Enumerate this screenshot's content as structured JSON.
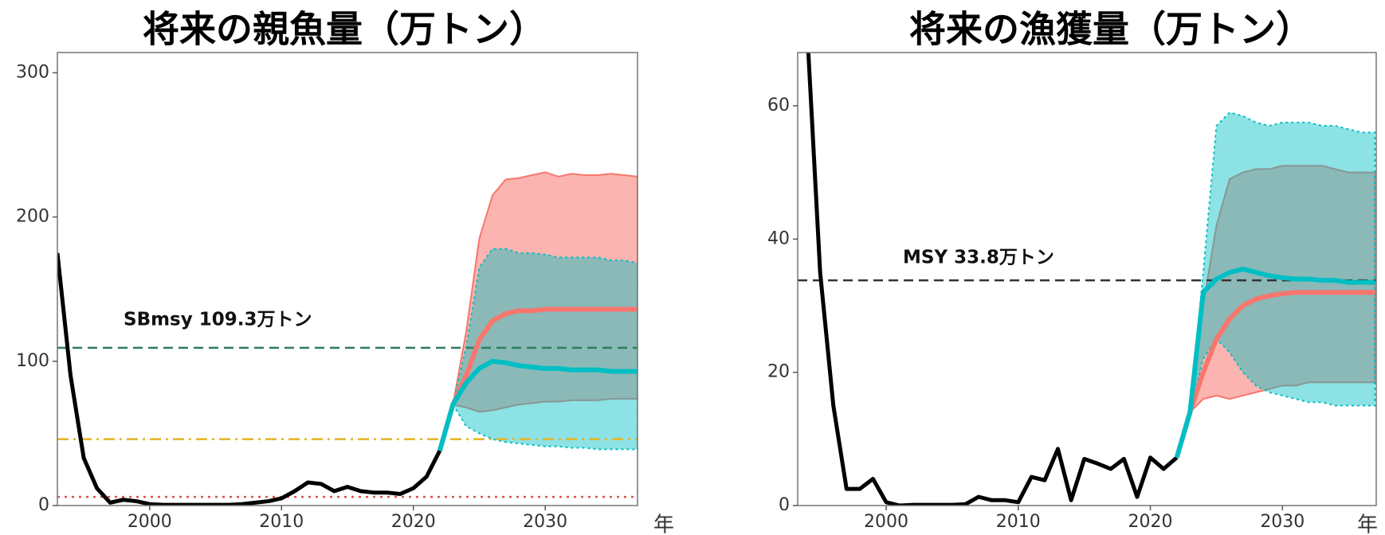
{
  "chart_data": [
    {
      "type": "line",
      "title": "将来の親魚量（万トン）",
      "x_label": "年",
      "x": [
        1993,
        1994,
        1995,
        1996,
        1997,
        1998,
        1999,
        2000,
        2001,
        2002,
        2003,
        2004,
        2005,
        2006,
        2007,
        2008,
        2009,
        2010,
        2011,
        2012,
        2013,
        2014,
        2015,
        2016,
        2017,
        2018,
        2019,
        2020,
        2021,
        2022,
        2023,
        2024,
        2025,
        2026,
        2027,
        2028,
        2029,
        2030,
        2031,
        2032,
        2033,
        2034,
        2035,
        2036,
        2037
      ],
      "xlim": [
        1993,
        2037
      ],
      "xticks": [
        2000,
        2010,
        2020,
        2030
      ],
      "ylim": [
        0,
        314
      ],
      "yticks": [
        0,
        100,
        200,
        300
      ],
      "bands": [
        {
          "color": "#f8766d",
          "lower": [
            null,
            null,
            null,
            null,
            null,
            null,
            null,
            null,
            null,
            null,
            null,
            null,
            null,
            null,
            null,
            null,
            null,
            null,
            null,
            null,
            null,
            null,
            null,
            null,
            null,
            null,
            null,
            null,
            null,
            38,
            70,
            68,
            65,
            66,
            68,
            70,
            71,
            72,
            72,
            73,
            73,
            73,
            74,
            74,
            74
          ],
          "upper": [
            null,
            null,
            null,
            null,
            null,
            null,
            null,
            null,
            null,
            null,
            null,
            null,
            null,
            null,
            null,
            null,
            null,
            null,
            null,
            null,
            null,
            null,
            null,
            null,
            null,
            null,
            null,
            null,
            null,
            38,
            70,
            120,
            185,
            215,
            226,
            227,
            229,
            231,
            228,
            230,
            229,
            229,
            230,
            229,
            228
          ]
        },
        {
          "color": "#00bfc4",
          "lower": [
            null,
            null,
            null,
            null,
            null,
            null,
            null,
            null,
            null,
            null,
            null,
            null,
            null,
            null,
            null,
            null,
            null,
            null,
            null,
            null,
            null,
            null,
            null,
            null,
            null,
            null,
            null,
            null,
            null,
            38,
            70,
            55,
            50,
            46,
            44,
            43,
            42,
            41,
            41,
            40,
            40,
            39,
            39,
            39,
            39
          ],
          "upper": [
            null,
            null,
            null,
            null,
            null,
            null,
            null,
            null,
            null,
            null,
            null,
            null,
            null,
            null,
            null,
            null,
            null,
            null,
            null,
            null,
            null,
            null,
            null,
            null,
            null,
            null,
            null,
            null,
            null,
            38,
            70,
            110,
            165,
            178,
            178,
            175,
            175,
            174,
            172,
            172,
            172,
            172,
            170,
            170,
            168
          ]
        }
      ],
      "series": [
        {
          "color": "#000000",
          "values": [
            175,
            90,
            33,
            12,
            2,
            4,
            3,
            1,
            0.5,
            0.5,
            0.5,
            0.5,
            0.5,
            0.5,
            1,
            2,
            3,
            5,
            10,
            16,
            15,
            10,
            13,
            10,
            9,
            9,
            8,
            12,
            20,
            38,
            null,
            null,
            null,
            null,
            null,
            null,
            null,
            null,
            null,
            null,
            null,
            null,
            null,
            null,
            null
          ]
        },
        {
          "color": "#f8766d",
          "values": [
            null,
            null,
            null,
            null,
            null,
            null,
            null,
            null,
            null,
            null,
            null,
            null,
            null,
            null,
            null,
            null,
            null,
            null,
            null,
            null,
            null,
            null,
            null,
            null,
            null,
            null,
            null,
            null,
            null,
            38,
            70,
            90,
            115,
            128,
            133,
            135,
            135,
            136,
            136,
            136,
            136,
            136,
            136,
            136,
            136
          ]
        },
        {
          "color": "#00bfc4",
          "values": [
            null,
            null,
            null,
            null,
            null,
            null,
            null,
            null,
            null,
            null,
            null,
            null,
            null,
            null,
            null,
            null,
            null,
            null,
            null,
            null,
            null,
            null,
            null,
            null,
            null,
            null,
            null,
            null,
            null,
            38,
            70,
            85,
            95,
            100,
            99,
            97,
            96,
            95,
            95,
            94,
            94,
            94,
            93,
            93,
            93
          ]
        }
      ],
      "hlines": [
        {
          "value": 109.3,
          "color": "#2e7d5b",
          "style": "dashed",
          "label": "SBmsy 109.3万トン"
        },
        {
          "value": 46,
          "color": "#e6b422",
          "style": "dashdot"
        },
        {
          "value": 6,
          "color": "#d9534f",
          "style": "dotted"
        }
      ]
    },
    {
      "type": "line",
      "title": "将来の漁獲量（万トン）",
      "x_label": "年",
      "x": [
        1993,
        1994,
        1995,
        1996,
        1997,
        1998,
        1999,
        2000,
        2001,
        2002,
        2003,
        2004,
        2005,
        2006,
        2007,
        2008,
        2009,
        2010,
        2011,
        2012,
        2013,
        2014,
        2015,
        2016,
        2017,
        2018,
        2019,
        2020,
        2021,
        2022,
        2023,
        2024,
        2025,
        2026,
        2027,
        2028,
        2029,
        2030,
        2031,
        2032,
        2033,
        2034,
        2035,
        2036,
        2037
      ],
      "xlim": [
        1993.3,
        2037.1
      ],
      "xticks": [
        2000,
        2010,
        2020,
        2030
      ],
      "ylim": [
        0,
        68
      ],
      "yticks": [
        0,
        20,
        40,
        60
      ],
      "bands": [
        {
          "color": "#f8766d",
          "lower": [
            null,
            null,
            null,
            null,
            null,
            null,
            null,
            null,
            null,
            null,
            null,
            null,
            null,
            null,
            null,
            null,
            null,
            null,
            null,
            null,
            null,
            null,
            null,
            null,
            null,
            null,
            null,
            null,
            null,
            7.2,
            14,
            16,
            16.5,
            16,
            16.5,
            17,
            17.5,
            18,
            18,
            18.5,
            18.5,
            18.5,
            18.5,
            18.5,
            18.5
          ],
          "upper": [
            null,
            null,
            null,
            null,
            null,
            null,
            null,
            null,
            null,
            null,
            null,
            null,
            null,
            null,
            null,
            null,
            null,
            null,
            null,
            null,
            null,
            null,
            null,
            null,
            null,
            null,
            null,
            null,
            null,
            7.2,
            14,
            30,
            42,
            49,
            50,
            50.5,
            50.5,
            51,
            51,
            51,
            51,
            50.5,
            50,
            50,
            50
          ]
        },
        {
          "color": "#00bfc4",
          "lower": [
            null,
            null,
            null,
            null,
            null,
            null,
            null,
            null,
            null,
            null,
            null,
            null,
            null,
            null,
            null,
            null,
            null,
            null,
            null,
            null,
            null,
            null,
            null,
            null,
            null,
            null,
            null,
            null,
            null,
            7.2,
            14,
            22,
            25,
            23,
            20,
            18,
            17,
            16.5,
            16,
            15.5,
            15.5,
            15,
            15,
            15,
            15
          ],
          "upper": [
            null,
            null,
            null,
            null,
            null,
            null,
            null,
            null,
            null,
            null,
            null,
            null,
            null,
            null,
            null,
            null,
            null,
            null,
            null,
            null,
            null,
            null,
            null,
            null,
            null,
            null,
            null,
            null,
            null,
            7.2,
            14,
            35,
            57,
            59,
            58.5,
            57.5,
            57,
            57.5,
            57.5,
            57.5,
            57,
            57,
            56.5,
            56,
            56
          ]
        }
      ],
      "series": [
        {
          "color": "#000000",
          "values": [
            null,
            72,
            35,
            15,
            2.5,
            2.5,
            4,
            0.5,
            0,
            0.1,
            0.1,
            0.1,
            0.1,
            0.2,
            1.3,
            0.8,
            0.8,
            0.5,
            4.3,
            3.8,
            8.5,
            0.8,
            7,
            6.3,
            5.5,
            7,
            1.3,
            7.2,
            5.5,
            7.2,
            null,
            null,
            null,
            null,
            null,
            null,
            null,
            null,
            null,
            null,
            null,
            null,
            null,
            null,
            null
          ]
        },
        {
          "color": "#f8766d",
          "values": [
            null,
            null,
            null,
            null,
            null,
            null,
            null,
            null,
            null,
            null,
            null,
            null,
            null,
            null,
            null,
            null,
            null,
            null,
            null,
            null,
            null,
            null,
            null,
            null,
            null,
            null,
            null,
            null,
            null,
            7.2,
            14,
            20,
            25,
            28,
            30,
            31,
            31.5,
            31.8,
            32,
            32,
            32,
            32,
            32,
            32,
            32
          ]
        },
        {
          "color": "#00bfc4",
          "values": [
            null,
            null,
            null,
            null,
            null,
            null,
            null,
            null,
            null,
            null,
            null,
            null,
            null,
            null,
            null,
            null,
            null,
            null,
            null,
            null,
            null,
            null,
            null,
            null,
            null,
            null,
            null,
            null,
            null,
            7.2,
            14,
            32,
            34,
            35,
            35.5,
            35,
            34.5,
            34.2,
            34,
            34,
            33.8,
            33.8,
            33.5,
            33.5,
            33.5
          ]
        }
      ],
      "hlines": [
        {
          "value": 33.8,
          "color": "#333333",
          "style": "dashed",
          "label": "MSY 33.8万トン"
        }
      ]
    }
  ]
}
